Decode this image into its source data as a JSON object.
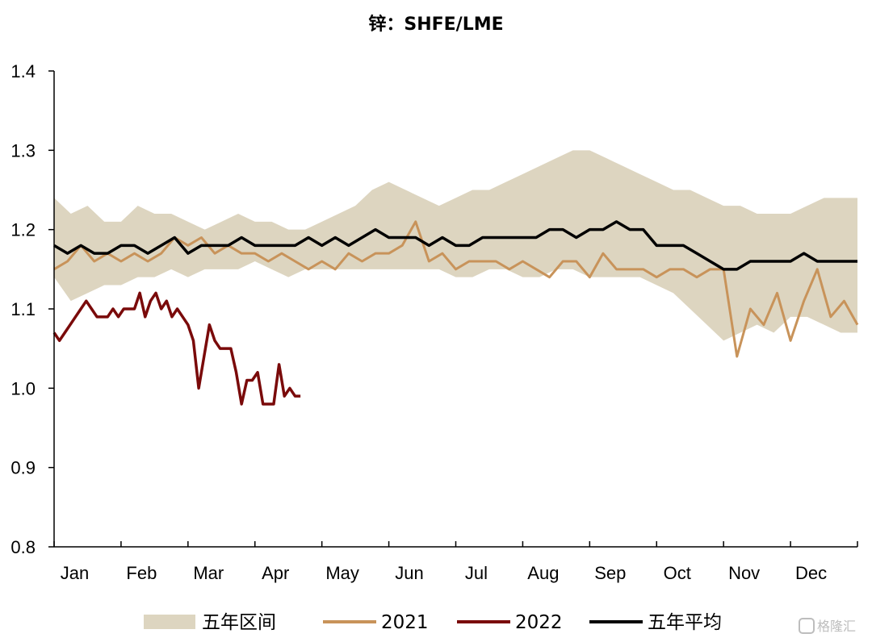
{
  "chart_data": {
    "type": "line",
    "title": "锌：SHFE/LME",
    "ylim": [
      0.8,
      1.4
    ],
    "y_ticks": [
      "1.4",
      "1.3",
      "1.2",
      "1.1",
      "1.0",
      "0.9",
      "0.8"
    ],
    "y_tick_values": [
      1.4,
      1.3,
      1.2,
      1.1,
      1.0,
      0.9,
      0.8
    ],
    "x_unit": "month",
    "xlim": [
      0,
      12
    ],
    "months": [
      "Jan",
      "Feb",
      "Mar",
      "Apr",
      "May",
      "Jun",
      "Jul",
      "Aug",
      "Sep",
      "Oct",
      "Nov",
      "Dec"
    ],
    "grid": false,
    "legend_position": "bottom",
    "legend": [
      "五年区间",
      "2021",
      "2022",
      "五年平均"
    ],
    "colors": {
      "range_fill": "#ddd5c0",
      "series_2021": "#c8935a",
      "series_2022": "#7a0a0a",
      "series_avg": "#000000"
    },
    "series": [
      {
        "name": "五年区间",
        "kind": "band",
        "x": [
          0,
          0.25,
          0.5,
          0.75,
          1,
          1.25,
          1.5,
          1.75,
          2,
          2.25,
          2.5,
          2.75,
          3,
          3.25,
          3.5,
          3.75,
          4,
          4.25,
          4.5,
          4.75,
          5,
          5.25,
          5.5,
          5.75,
          6,
          6.25,
          6.5,
          6.75,
          7,
          7.25,
          7.5,
          7.75,
          8,
          8.25,
          8.5,
          8.75,
          9,
          9.25,
          9.5,
          9.75,
          10,
          10.25,
          10.5,
          10.75,
          11,
          11.25,
          11.5,
          11.75,
          12
        ],
        "low": [
          1.14,
          1.11,
          1.12,
          1.13,
          1.13,
          1.14,
          1.14,
          1.15,
          1.14,
          1.15,
          1.15,
          1.15,
          1.16,
          1.15,
          1.14,
          1.15,
          1.15,
          1.15,
          1.15,
          1.15,
          1.15,
          1.15,
          1.15,
          1.15,
          1.14,
          1.14,
          1.15,
          1.15,
          1.14,
          1.14,
          1.15,
          1.15,
          1.14,
          1.14,
          1.14,
          1.14,
          1.13,
          1.12,
          1.1,
          1.08,
          1.06,
          1.07,
          1.08,
          1.07,
          1.09,
          1.09,
          1.08,
          1.07,
          1.07
        ],
        "high": [
          1.24,
          1.22,
          1.23,
          1.21,
          1.21,
          1.23,
          1.22,
          1.22,
          1.21,
          1.2,
          1.21,
          1.22,
          1.21,
          1.21,
          1.2,
          1.2,
          1.21,
          1.22,
          1.23,
          1.25,
          1.26,
          1.25,
          1.24,
          1.23,
          1.24,
          1.25,
          1.25,
          1.26,
          1.27,
          1.28,
          1.29,
          1.3,
          1.3,
          1.29,
          1.28,
          1.27,
          1.26,
          1.25,
          1.25,
          1.24,
          1.23,
          1.23,
          1.22,
          1.22,
          1.22,
          1.23,
          1.24,
          1.24,
          1.24
        ]
      },
      {
        "name": "2021",
        "kind": "line",
        "x": [
          0,
          0.2,
          0.4,
          0.6,
          0.8,
          1.0,
          1.2,
          1.4,
          1.6,
          1.8,
          2.0,
          2.2,
          2.4,
          2.6,
          2.8,
          3.0,
          3.2,
          3.4,
          3.6,
          3.8,
          4.0,
          4.2,
          4.4,
          4.6,
          4.8,
          5.0,
          5.2,
          5.4,
          5.6,
          5.8,
          6.0,
          6.2,
          6.4,
          6.6,
          6.8,
          7.0,
          7.2,
          7.4,
          7.6,
          7.8,
          8.0,
          8.2,
          8.4,
          8.6,
          8.8,
          9.0,
          9.2,
          9.4,
          9.6,
          9.8,
          10.0,
          10.2,
          10.4,
          10.6,
          10.8,
          11.0,
          11.2,
          11.4,
          11.6,
          11.8,
          12.0
        ],
        "y": [
          1.15,
          1.16,
          1.18,
          1.16,
          1.17,
          1.16,
          1.17,
          1.16,
          1.17,
          1.19,
          1.18,
          1.19,
          1.17,
          1.18,
          1.17,
          1.17,
          1.16,
          1.17,
          1.16,
          1.15,
          1.16,
          1.15,
          1.17,
          1.16,
          1.17,
          1.17,
          1.18,
          1.21,
          1.16,
          1.17,
          1.15,
          1.16,
          1.16,
          1.16,
          1.15,
          1.16,
          1.15,
          1.14,
          1.16,
          1.16,
          1.14,
          1.17,
          1.15,
          1.15,
          1.15,
          1.14,
          1.15,
          1.15,
          1.14,
          1.15,
          1.15,
          1.04,
          1.1,
          1.08,
          1.12,
          1.06,
          1.11,
          1.15,
          1.09,
          1.11,
          1.08
        ]
      },
      {
        "name": "2022",
        "kind": "line",
        "x": [
          0,
          0.08,
          0.16,
          0.24,
          0.32,
          0.4,
          0.48,
          0.56,
          0.64,
          0.72,
          0.8,
          0.88,
          0.96,
          1.04,
          1.12,
          1.2,
          1.28,
          1.36,
          1.44,
          1.52,
          1.6,
          1.68,
          1.76,
          1.84,
          1.92,
          2.0,
          2.08,
          2.16,
          2.24,
          2.32,
          2.4,
          2.48,
          2.56,
          2.64,
          2.72,
          2.8,
          2.88,
          2.96,
          3.04,
          3.12,
          3.2,
          3.28,
          3.36,
          3.44,
          3.52,
          3.6,
          3.68
        ],
        "y": [
          1.07,
          1.06,
          1.07,
          1.08,
          1.09,
          1.1,
          1.11,
          1.1,
          1.09,
          1.09,
          1.09,
          1.1,
          1.09,
          1.1,
          1.1,
          1.1,
          1.12,
          1.09,
          1.11,
          1.12,
          1.1,
          1.11,
          1.09,
          1.1,
          1.09,
          1.08,
          1.06,
          1.0,
          1.04,
          1.08,
          1.06,
          1.05,
          1.05,
          1.05,
          1.02,
          0.98,
          1.01,
          1.01,
          1.02,
          0.98,
          0.98,
          0.98,
          1.03,
          0.99,
          1.0,
          0.99,
          0.99
        ]
      },
      {
        "name": "五年平均",
        "kind": "line",
        "x": [
          0,
          0.2,
          0.4,
          0.6,
          0.8,
          1.0,
          1.2,
          1.4,
          1.6,
          1.8,
          2.0,
          2.2,
          2.4,
          2.6,
          2.8,
          3.0,
          3.2,
          3.4,
          3.6,
          3.8,
          4.0,
          4.2,
          4.4,
          4.6,
          4.8,
          5.0,
          5.2,
          5.4,
          5.6,
          5.8,
          6.0,
          6.2,
          6.4,
          6.6,
          6.8,
          7.0,
          7.2,
          7.4,
          7.6,
          7.8,
          8.0,
          8.2,
          8.4,
          8.6,
          8.8,
          9.0,
          9.2,
          9.4,
          9.6,
          9.8,
          10.0,
          10.2,
          10.4,
          10.6,
          10.8,
          11.0,
          11.2,
          11.4,
          11.6,
          11.8,
          12.0
        ],
        "y": [
          1.18,
          1.17,
          1.18,
          1.17,
          1.17,
          1.18,
          1.18,
          1.17,
          1.18,
          1.19,
          1.17,
          1.18,
          1.18,
          1.18,
          1.19,
          1.18,
          1.18,
          1.18,
          1.18,
          1.19,
          1.18,
          1.19,
          1.18,
          1.19,
          1.2,
          1.19,
          1.19,
          1.19,
          1.18,
          1.19,
          1.18,
          1.18,
          1.19,
          1.19,
          1.19,
          1.19,
          1.19,
          1.2,
          1.2,
          1.19,
          1.2,
          1.2,
          1.21,
          1.2,
          1.2,
          1.18,
          1.18,
          1.18,
          1.17,
          1.16,
          1.15,
          1.15,
          1.16,
          1.16,
          1.16,
          1.16,
          1.17,
          1.16,
          1.16,
          1.16,
          1.16
        ]
      }
    ]
  },
  "watermark": "格隆汇"
}
